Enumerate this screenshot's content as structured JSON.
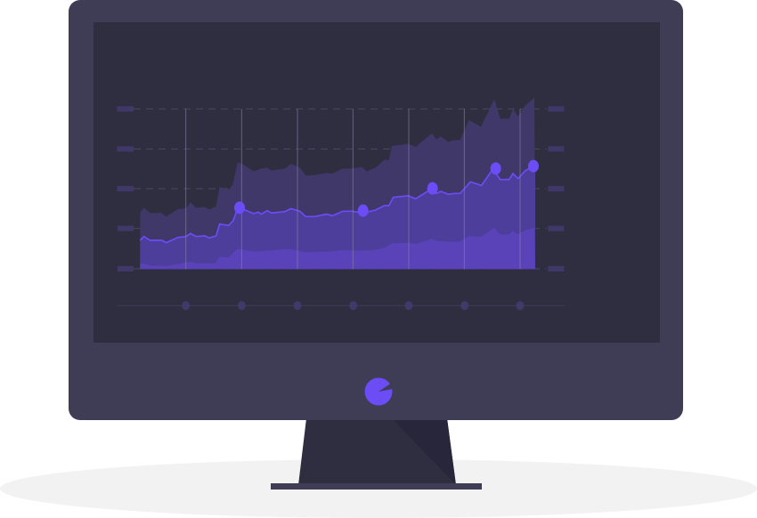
{
  "illustration": {
    "subject": "monitor-with-area-chart",
    "colors": {
      "shadow": "#f2f2f2",
      "monitor_body": "#3f3d56",
      "screen": "#2f2e41",
      "stand": "#2f2e41",
      "stand_shade": "#27263a",
      "accent": "#6c4cf5",
      "area_top": "#403868",
      "area_middle": "#4d3e9b",
      "area_bottom": "#5a42b8",
      "grid": "#4a4860",
      "tick_marks": "#403868",
      "axis_dots": "#403a6b"
    }
  }
}
